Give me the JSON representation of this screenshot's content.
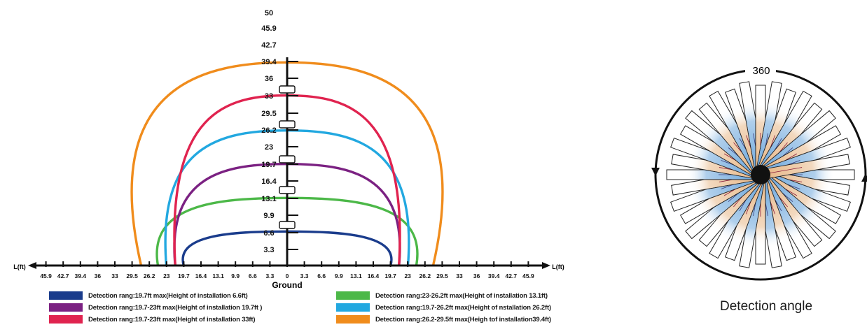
{
  "diagram": {
    "vertical_ticks": [
      "50",
      "45.9",
      "42.7",
      "39.4",
      "36",
      "33",
      "29.5",
      "26.2",
      "23",
      "19.7",
      "16.4",
      "13.1",
      "9.9",
      "6.6",
      "3.3"
    ],
    "horizontal_ticks": [
      "45.9",
      "42.7",
      "39.4",
      "36",
      "33",
      "29.5",
      "26.2",
      "23",
      "19.7",
      "16.4",
      "13.1",
      "9.9",
      "6.6",
      "3.3",
      "0",
      "3.3",
      "6.6",
      "9.9",
      "13.1",
      "16.4",
      "19.7",
      "23",
      "26.2",
      "29.5",
      "33",
      "36",
      "39.4",
      "42.7",
      "45.9"
    ],
    "axis_label_left": "L(ft)",
    "axis_label_right": "L(ft)",
    "ground_label": "Ground",
    "curves": [
      {
        "half_range": 19.7,
        "height": 6.6,
        "color": "#1a3c8c"
      },
      {
        "half_range": 24.6,
        "height": 13.1,
        "color": "#4cb848"
      },
      {
        "half_range": 21.3,
        "height": 19.7,
        "color": "#7b2182"
      },
      {
        "half_range": 23.0,
        "height": 26.2,
        "color": "#22a8e0"
      },
      {
        "half_range": 21.3,
        "height": 33.0,
        "color": "#e0234f"
      },
      {
        "half_range": 27.8,
        "height": 39.4,
        "color": "#f08c1c"
      }
    ]
  },
  "legend": [
    {
      "text": "Detection rang:19.7ft max(Height of installation 6.6ft)",
      "color": "#1a3c8c"
    },
    {
      "text": "Detection rang:23-26.2ft max(Height of installation 13.1ft)",
      "color": "#4cb848"
    },
    {
      "text": "Detection rang:19.7-23ft max(Height of installation 19.7ft )",
      "color": "#7b2182"
    },
    {
      "text": "Detection rang:19.7-26.2ft max(Height of nstallation 26.2ft)",
      "color": "#22a8e0"
    },
    {
      "text": "Detection rang:19.7-23ft max(Height of installation 33ft)",
      "color": "#e0234f"
    },
    {
      "text": "Detection rang:26.2-29.5ft max(Heigh tof installation39.4ft)",
      "color": "#f08c1c"
    }
  ],
  "angle": {
    "label": "360",
    "caption": "Detection angle",
    "zone_colors": [
      "#6fa8dc",
      "#e8b98a"
    ],
    "zones": 36
  }
}
